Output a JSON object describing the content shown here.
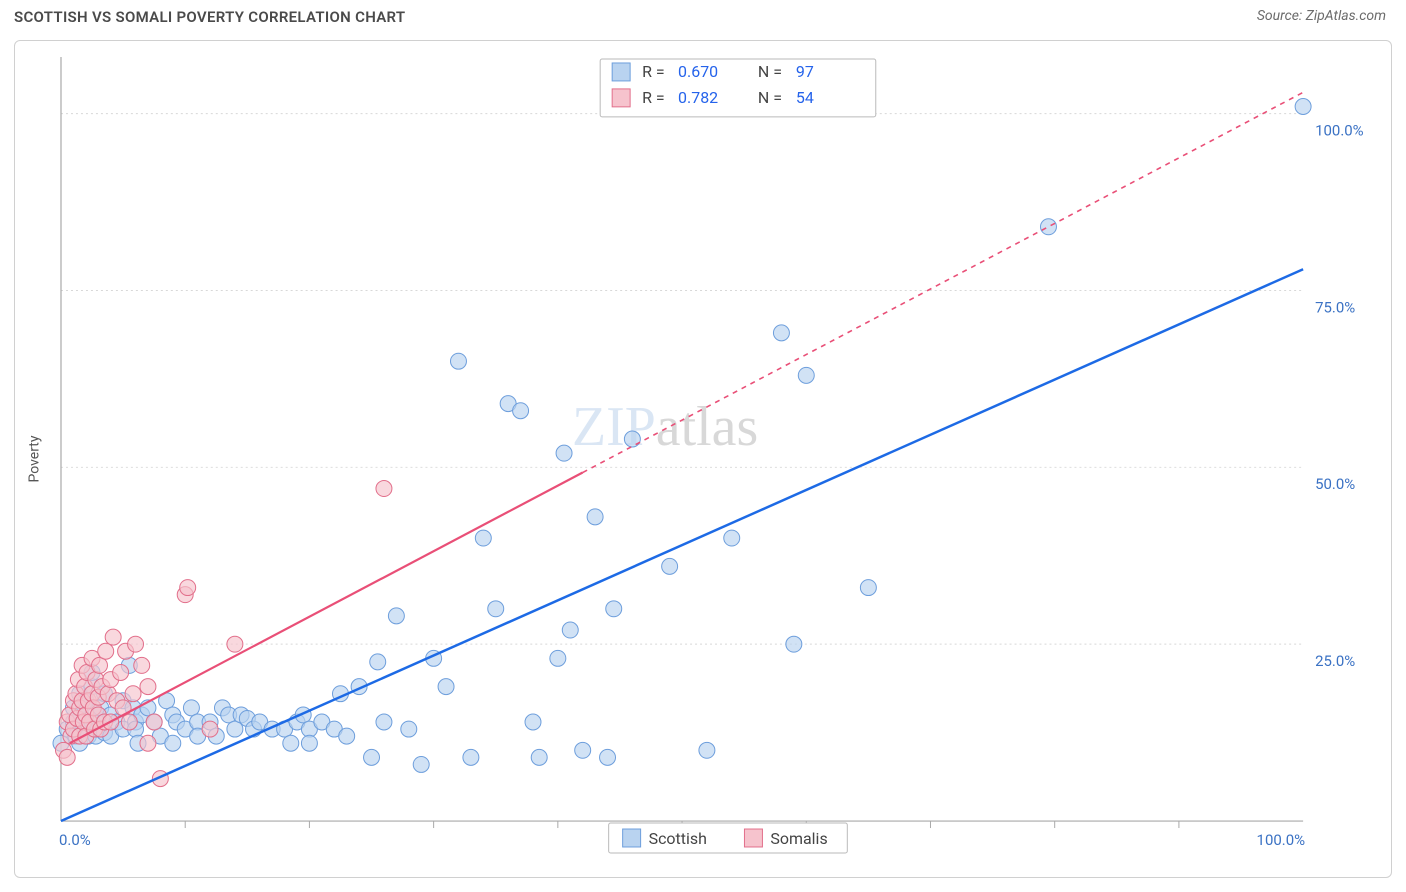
{
  "title": "SCOTTISH VS SOMALI POVERTY CORRELATION CHART",
  "source": "Source: ZipAtlas.com",
  "ylabel": "Poverty",
  "watermark_a": "ZIP",
  "watermark_b": "atlas",
  "chart": {
    "type": "scatter",
    "xlim": [
      0,
      100
    ],
    "ylim": [
      0,
      108
    ],
    "background_color": "#ffffff",
    "grid_color": "#d8d8d8",
    "axis_color": "#a9a9a9",
    "ytick_values": [
      25,
      50,
      75,
      100
    ],
    "ytick_labels": [
      "25.0%",
      "50.0%",
      "75.0%",
      "100.0%"
    ],
    "xtick_label_left": "0.0%",
    "xtick_label_right": "100.0%",
    "xtick_minor": [
      10,
      20,
      30,
      40,
      50,
      60,
      70,
      80,
      90
    ],
    "scatter_radius": 8,
    "scatter_stroke_width": 1,
    "series": [
      {
        "name": "Scottish",
        "fill": "#b9d3f0",
        "stroke": "#6d9edc",
        "trend_color": "#1d6ae5",
        "trend_dash": "",
        "trend_x1": 0,
        "trend_y1": 0,
        "trend_x2": 100,
        "trend_y2": 78,
        "points": [
          [
            0,
            11
          ],
          [
            0.5,
            13
          ],
          [
            1,
            14
          ],
          [
            1,
            16
          ],
          [
            1.2,
            12
          ],
          [
            1.5,
            18
          ],
          [
            1.5,
            11
          ],
          [
            1.6,
            15
          ],
          [
            1.8,
            16.5
          ],
          [
            2,
            13
          ],
          [
            2,
            17
          ],
          [
            2.2,
            12
          ],
          [
            2.5,
            14
          ],
          [
            2.5,
            19
          ],
          [
            2.5,
            21
          ],
          [
            2.8,
            12
          ],
          [
            3,
            15
          ],
          [
            3,
            13
          ],
          [
            3.2,
            16
          ],
          [
            3.5,
            12.5
          ],
          [
            3.5,
            18
          ],
          [
            4,
            12
          ],
          [
            4,
            15
          ],
          [
            4.5,
            14
          ],
          [
            5,
            17
          ],
          [
            5,
            13
          ],
          [
            5.5,
            22
          ],
          [
            5.8,
            16
          ],
          [
            6,
            14
          ],
          [
            6,
            13
          ],
          [
            6.2,
            11
          ],
          [
            6.5,
            15
          ],
          [
            7,
            16
          ],
          [
            7.5,
            14
          ],
          [
            8,
            12
          ],
          [
            8.5,
            17
          ],
          [
            9,
            11
          ],
          [
            9,
            15
          ],
          [
            9.3,
            14
          ],
          [
            10,
            13
          ],
          [
            10.5,
            16
          ],
          [
            11,
            14
          ],
          [
            11,
            12
          ],
          [
            12,
            14
          ],
          [
            12.5,
            12
          ],
          [
            13,
            16
          ],
          [
            13.5,
            15
          ],
          [
            14,
            13
          ],
          [
            14.5,
            15
          ],
          [
            15,
            14.5
          ],
          [
            15.5,
            13
          ],
          [
            16,
            14
          ],
          [
            17,
            13
          ],
          [
            18,
            13
          ],
          [
            18.5,
            11
          ],
          [
            19,
            14
          ],
          [
            19.5,
            15
          ],
          [
            20,
            13
          ],
          [
            20,
            11
          ],
          [
            21,
            14
          ],
          [
            22,
            13
          ],
          [
            22.5,
            18
          ],
          [
            23,
            12
          ],
          [
            24,
            19
          ],
          [
            25,
            9
          ],
          [
            25.5,
            22.5
          ],
          [
            26,
            14
          ],
          [
            27,
            29
          ],
          [
            28,
            13
          ],
          [
            29,
            8
          ],
          [
            30,
            23
          ],
          [
            31,
            19
          ],
          [
            32,
            65
          ],
          [
            33,
            9
          ],
          [
            34,
            40
          ],
          [
            35,
            30
          ],
          [
            36,
            59
          ],
          [
            37,
            58
          ],
          [
            38,
            14
          ],
          [
            38.5,
            9
          ],
          [
            40,
            23
          ],
          [
            40.5,
            52
          ],
          [
            41,
            27
          ],
          [
            42,
            10
          ],
          [
            43,
            43
          ],
          [
            44,
            9
          ],
          [
            44.5,
            30
          ],
          [
            46,
            54
          ],
          [
            49,
            36
          ],
          [
            52,
            10
          ],
          [
            54,
            40
          ],
          [
            58,
            69
          ],
          [
            59,
            25
          ],
          [
            60,
            63
          ],
          [
            65,
            33
          ],
          [
            79.5,
            84
          ],
          [
            100,
            101
          ]
        ]
      },
      {
        "name": "Somalis",
        "fill": "#f6c3cd",
        "stroke": "#e26f8b",
        "trend_color": "#e94f77",
        "trend_dash": "5,5",
        "trend_x1": 0.7,
        "trend_y1": 11,
        "trend_x2": 100,
        "trend_y2": 103,
        "trend_solid_until_x": 42,
        "points": [
          [
            0.2,
            10
          ],
          [
            0.5,
            14
          ],
          [
            0.5,
            9
          ],
          [
            0.7,
            15
          ],
          [
            0.8,
            12
          ],
          [
            1,
            17
          ],
          [
            1,
            13
          ],
          [
            1.2,
            18
          ],
          [
            1.3,
            14.5
          ],
          [
            1.4,
            20
          ],
          [
            1.5,
            16
          ],
          [
            1.5,
            12
          ],
          [
            1.7,
            17
          ],
          [
            1.7,
            22
          ],
          [
            1.8,
            14
          ],
          [
            1.9,
            19
          ],
          [
            2,
            15
          ],
          [
            2,
            12
          ],
          [
            2.1,
            21
          ],
          [
            2.2,
            17
          ],
          [
            2.3,
            14
          ],
          [
            2.5,
            18
          ],
          [
            2.5,
            23
          ],
          [
            2.6,
            16
          ],
          [
            2.7,
            13
          ],
          [
            2.8,
            20
          ],
          [
            3,
            15
          ],
          [
            3,
            17.5
          ],
          [
            3.1,
            22
          ],
          [
            3.2,
            13
          ],
          [
            3.3,
            19
          ],
          [
            3.5,
            14
          ],
          [
            3.6,
            24
          ],
          [
            3.8,
            18
          ],
          [
            4,
            20
          ],
          [
            4,
            14
          ],
          [
            4.2,
            26
          ],
          [
            4.5,
            17
          ],
          [
            4.8,
            21
          ],
          [
            5,
            16
          ],
          [
            5.2,
            24
          ],
          [
            5.5,
            14
          ],
          [
            5.8,
            18
          ],
          [
            6,
            25
          ],
          [
            6.5,
            22
          ],
          [
            7,
            19
          ],
          [
            7,
            11
          ],
          [
            7.5,
            14
          ],
          [
            8,
            6
          ],
          [
            10,
            32
          ],
          [
            10.2,
            33
          ],
          [
            12,
            13
          ],
          [
            14,
            25
          ],
          [
            26,
            47
          ]
        ]
      }
    ]
  },
  "corr_box": {
    "rows": [
      {
        "swatch_fill": "#b9d3f0",
        "swatch_stroke": "#6d9edc",
        "r_label": "R =",
        "r_value": "0.670",
        "n_label": "N =",
        "n_value": "97"
      },
      {
        "swatch_fill": "#f6c3cd",
        "swatch_stroke": "#e26f8b",
        "r_label": "R =",
        "r_value": "0.782",
        "n_label": "N =",
        "n_value": "54"
      }
    ]
  },
  "legend": {
    "items": [
      {
        "label": "Scottish",
        "fill": "#b9d3f0",
        "stroke": "#6d9edc"
      },
      {
        "label": "Somalis",
        "fill": "#f6c3cd",
        "stroke": "#e26f8b"
      }
    ]
  }
}
